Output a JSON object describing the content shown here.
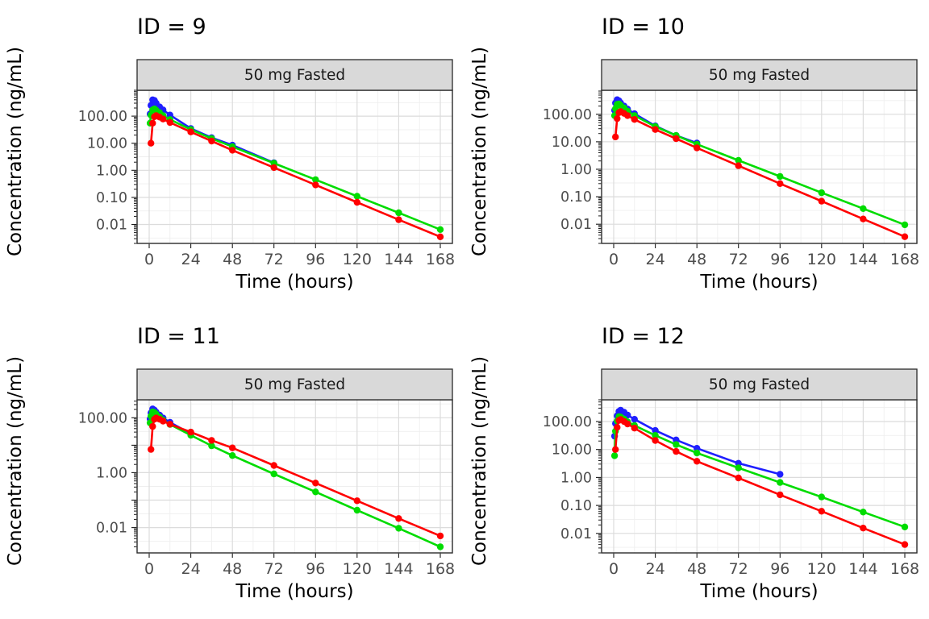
{
  "figure": {
    "background": "#FFFFFF",
    "strip_fill": "#D9D9D9",
    "panel_border": "#2A2A2A",
    "grid_major": "#DCDCDC",
    "grid_minor": "#EFEFEF",
    "tick_label_color": "#4D4D4D"
  },
  "chart_data": [
    {
      "type": "line",
      "title": "ID = 9",
      "strip_label": "50 mg Fasted",
      "xlabel": "Time (hours)",
      "ylabel": "Concentration (ng/mL)",
      "x_ticks": [
        0,
        24,
        48,
        72,
        96,
        120,
        144,
        168
      ],
      "xlim": [
        -7,
        175
      ],
      "y_scale": "log10",
      "ylim": [
        0.002,
        900
      ],
      "y_tick_values": [
        100,
        10,
        1,
        0.1,
        0.01
      ],
      "y_tick_labels": [
        "100.00",
        "10.00",
        "1.00",
        "0.10",
        "0.01"
      ],
      "grid": true,
      "legend": "none",
      "series": [
        {
          "name": "blue",
          "color": "#1F1FFF",
          "t": [
            0.5,
            1,
            2,
            3,
            4,
            6,
            8,
            12,
            24,
            36,
            48,
            72
          ],
          "y": [
            120,
            250,
            400,
            380,
            300,
            220,
            170,
            110,
            35,
            16,
            8.5,
            1.9
          ]
        },
        {
          "name": "green",
          "color": "#00DC00",
          "t": [
            0.5,
            1,
            2,
            3,
            4,
            6,
            8,
            12,
            24,
            36,
            48,
            72,
            96,
            120,
            144,
            168
          ],
          "y": [
            55,
            110,
            170,
            185,
            165,
            135,
            105,
            75,
            32,
            15,
            7.5,
            1.83,
            0.45,
            0.11,
            0.027,
            0.0065
          ]
        },
        {
          "name": "red",
          "color": "#FF0000",
          "t": [
            1,
            2,
            3,
            4,
            6,
            8,
            12,
            24,
            36,
            48,
            72,
            96,
            120,
            144,
            168
          ],
          "y": [
            10,
            55,
            95,
            105,
            92,
            78,
            58,
            26,
            12,
            5.5,
            1.26,
            0.29,
            0.066,
            0.015,
            0.0035
          ]
        }
      ]
    },
    {
      "type": "line",
      "title": "ID = 10",
      "strip_label": "50 mg Fasted",
      "xlabel": "Time (hours)",
      "ylabel": "Concentration (ng/mL)",
      "x_ticks": [
        0,
        24,
        48,
        72,
        96,
        120,
        144,
        168
      ],
      "xlim": [
        -7,
        175
      ],
      "y_scale": "log10",
      "ylim": [
        0.002,
        750
      ],
      "y_tick_values": [
        100,
        10,
        1,
        0.1,
        0.01
      ],
      "y_tick_labels": [
        "100.00",
        "10.00",
        "1.00",
        "0.10",
        "0.01"
      ],
      "grid": true,
      "legend": "none",
      "series": [
        {
          "name": "blue",
          "color": "#1F1FFF",
          "t": [
            0.5,
            1,
            2,
            3,
            4,
            6,
            8,
            12,
            24,
            36,
            48
          ],
          "y": [
            140,
            260,
            340,
            310,
            260,
            200,
            155,
            105,
            38,
            17,
            9
          ]
        },
        {
          "name": "green",
          "color": "#00DC00",
          "t": [
            0.5,
            1,
            2,
            3,
            4,
            6,
            8,
            12,
            24,
            36,
            48,
            72,
            96,
            120,
            144,
            168
          ],
          "y": [
            90,
            160,
            230,
            240,
            210,
            170,
            130,
            90,
            36,
            17,
            8.2,
            2.1,
            0.55,
            0.14,
            0.037,
            0.0095
          ]
        },
        {
          "name": "red",
          "color": "#FF0000",
          "t": [
            1,
            2,
            3,
            4,
            6,
            8,
            12,
            24,
            36,
            48,
            72,
            96,
            120,
            144,
            168
          ],
          "y": [
            15,
            70,
            115,
            125,
            108,
            90,
            65,
            28,
            13,
            6,
            1.35,
            0.3,
            0.069,
            0.0155,
            0.0035
          ]
        }
      ]
    },
    {
      "type": "line",
      "title": "ID = 11",
      "strip_label": "50 mg Fasted",
      "xlabel": "Time (hours)",
      "ylabel": "Concentration (ng/mL)",
      "x_ticks": [
        0,
        24,
        48,
        72,
        96,
        120,
        144,
        168
      ],
      "xlim": [
        -7,
        175
      ],
      "y_scale": "log10",
      "ylim": [
        0.0012,
        450
      ],
      "y_tick_values": [
        100,
        1,
        0.01
      ],
      "y_tick_labels": [
        "100.00",
        "1.00",
        "0.01"
      ],
      "grid": true,
      "legend": "none",
      "series": [
        {
          "name": "blue",
          "color": "#1F1FFF",
          "t": [
            0.5,
            1,
            2,
            3,
            4,
            6,
            8,
            12,
            24
          ],
          "y": [
            90,
            150,
            210,
            190,
            160,
            125,
            98,
            68,
            26
          ]
        },
        {
          "name": "green",
          "color": "#00DC00",
          "t": [
            0.5,
            1,
            2,
            3,
            4,
            6,
            8,
            12,
            24,
            36,
            48,
            72,
            96,
            120,
            144,
            168
          ],
          "y": [
            65,
            115,
            165,
            155,
            135,
            105,
            82,
            57,
            23,
            9.5,
            4.2,
            0.9,
            0.2,
            0.043,
            0.0095,
            0.002
          ]
        },
        {
          "name": "red",
          "color": "#FF0000",
          "t": [
            1,
            2,
            3,
            4,
            6,
            8,
            12,
            24,
            36,
            48,
            72,
            96,
            120,
            144,
            168
          ],
          "y": [
            7,
            48,
            88,
            98,
            88,
            75,
            58,
            30,
            15,
            8,
            1.83,
            0.42,
            0.095,
            0.0215,
            0.005
          ]
        }
      ]
    },
    {
      "type": "line",
      "title": "ID = 12",
      "strip_label": "50 mg Fasted",
      "xlabel": "Time (hours)",
      "ylabel": "Concentration (ng/mL)",
      "x_ticks": [
        0,
        24,
        48,
        72,
        96,
        120,
        144,
        168
      ],
      "xlim": [
        -7,
        175
      ],
      "y_scale": "log10",
      "ylim": [
        0.002,
        600
      ],
      "y_tick_values": [
        100,
        10,
        1,
        0.1,
        0.01
      ],
      "y_tick_labels": [
        "100.00",
        "10.00",
        "1.00",
        "0.10",
        "0.01"
      ],
      "grid": true,
      "legend": "none",
      "series": [
        {
          "name": "blue",
          "color": "#1F1FFF",
          "t": [
            0.5,
            1,
            2,
            3,
            4,
            6,
            8,
            12,
            24,
            36,
            48,
            72,
            96
          ],
          "y": [
            30,
            85,
            160,
            230,
            255,
            215,
            170,
            120,
            48,
            22,
            11,
            3.2,
            1.3
          ]
        },
        {
          "name": "green",
          "color": "#00DC00",
          "t": [
            0.5,
            1,
            2,
            3,
            4,
            6,
            8,
            12,
            24,
            36,
            48,
            72,
            96,
            120,
            144,
            168
          ],
          "y": [
            6,
            45,
            105,
            150,
            145,
            122,
            98,
            72,
            32,
            15,
            7.5,
            2.2,
            0.66,
            0.2,
            0.058,
            0.017
          ]
        },
        {
          "name": "red",
          "color": "#FF0000",
          "t": [
            1,
            2,
            3,
            4,
            6,
            8,
            12,
            24,
            36,
            48,
            72,
            96,
            120,
            144,
            168
          ],
          "y": [
            10,
            62,
            110,
            118,
            100,
            82,
            58,
            21,
            8.5,
            3.8,
            0.96,
            0.24,
            0.062,
            0.0155,
            0.004
          ]
        }
      ]
    }
  ]
}
